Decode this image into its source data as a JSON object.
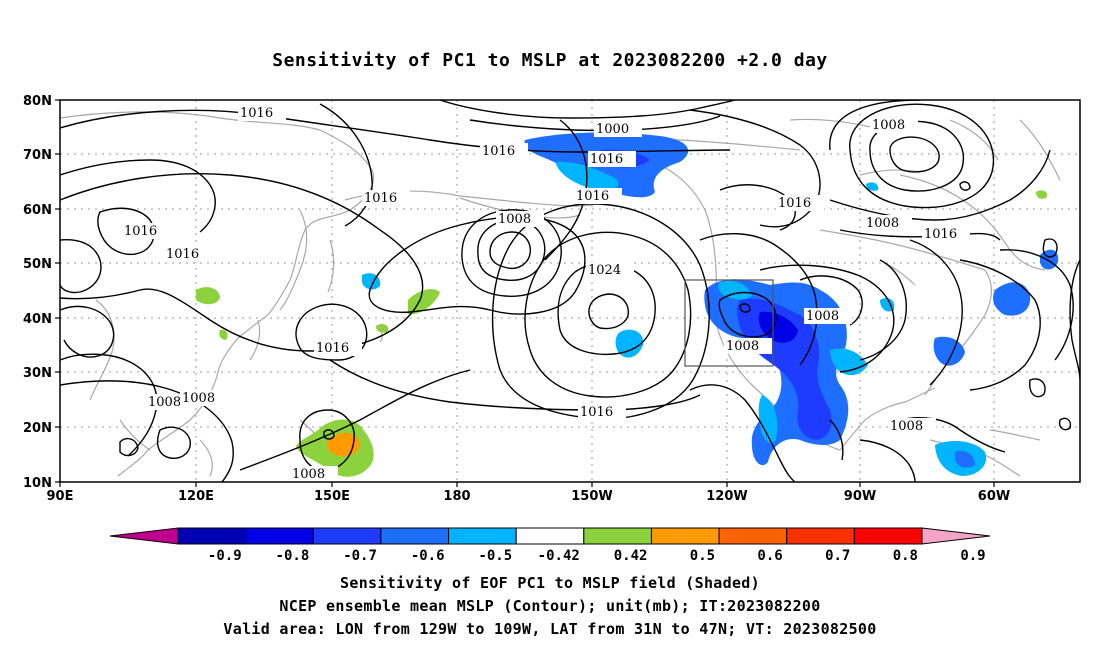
{
  "title": "Sensitivity of PC1 to MSLP at 2023082200 +2.0 day",
  "lat_ticks": [
    "80N",
    "70N",
    "60N",
    "50N",
    "40N",
    "30N",
    "20N",
    "10N"
  ],
  "lon_ticks": [
    "90E",
    "120E",
    "150E",
    "180",
    "150W",
    "120W",
    "90W",
    "60W"
  ],
  "contour_labels": {
    "c1": "1016",
    "c2": "1016",
    "c3": "1000",
    "c4": "1016",
    "c5": "1008",
    "c6": "1016",
    "c7": "1016",
    "c8": "1016",
    "c9": "1016",
    "c10": "1008",
    "c11": "1016",
    "c12": "1008",
    "c13": "1016",
    "c14": "1024",
    "c15": "1016",
    "c16": "1008",
    "c17": "1008",
    "c18": "1016",
    "c19": "1008",
    "c20": "1008",
    "c21": "1008",
    "c22": "1008"
  },
  "colorbar": {
    "labels": [
      "-0.9",
      "-0.8",
      "-0.7",
      "-0.6",
      "-0.5",
      "-0.42",
      "0.42",
      "0.5",
      "0.6",
      "0.7",
      "0.8",
      "0.9"
    ],
    "colors": {
      "neg_end": "#c0008c",
      "pos_end": "#f4a4c8",
      "bins": [
        "#0000b4",
        "#0000e6",
        "#1e3cff",
        "#1e6eff",
        "#00b4ff",
        "#ffffff",
        "#8cd23c",
        "#ff9a00",
        "#ff6400",
        "#ff3200",
        "#ff0000"
      ]
    }
  },
  "captions": {
    "line1": "Sensitivity of EOF PC1 to MSLP field (Shaded)",
    "line2": "NCEP ensemble mean MSLP (Contour); unit(mb); IT:2023082200",
    "line3": "Valid area: LON from 129W to 109W, LAT from 31N to 47N; VT: 2023082500"
  }
}
